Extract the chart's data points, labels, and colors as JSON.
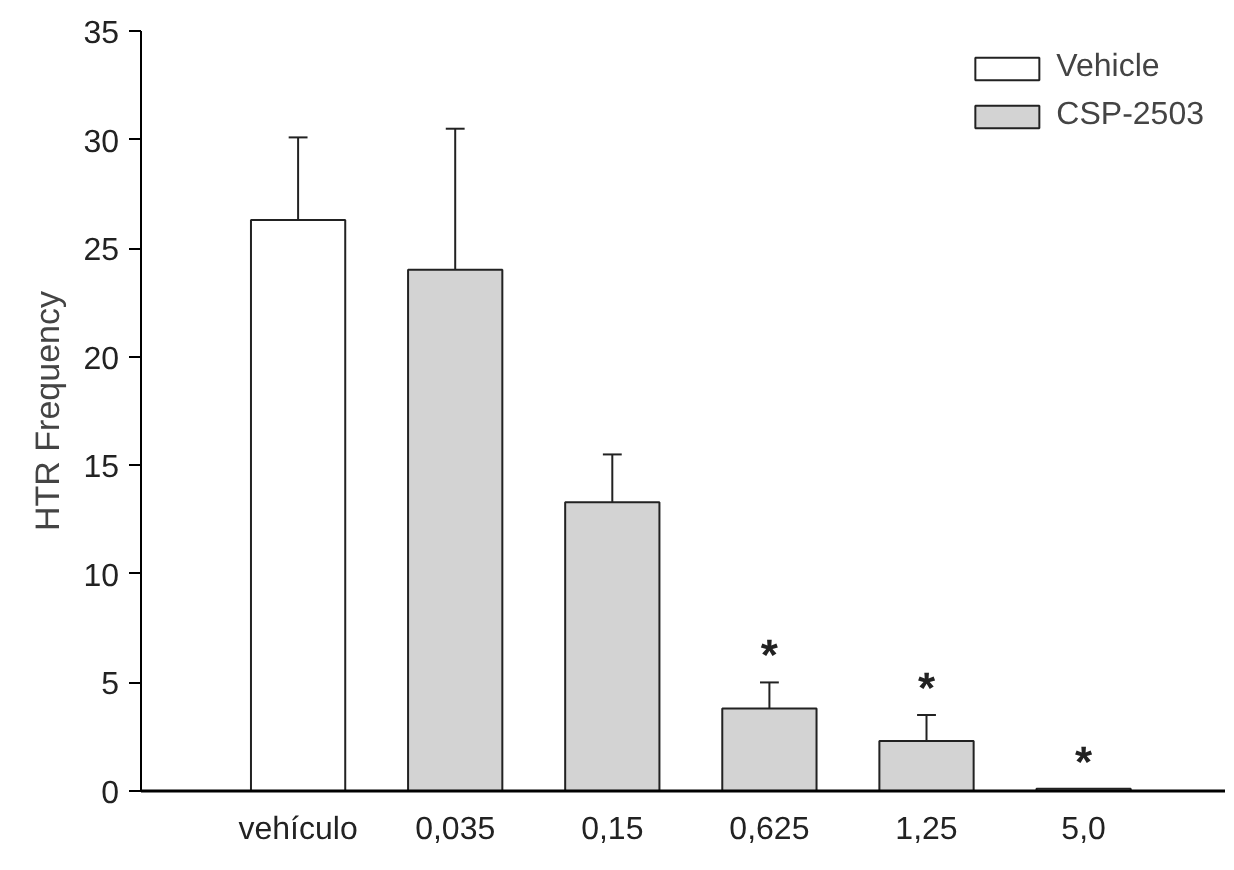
{
  "chart_data": {
    "type": "bar",
    "ylabel": "HTR Frequency",
    "categories": [
      "vehículo",
      "0,035",
      "0,15",
      "0,625",
      "1,25",
      "5,0"
    ],
    "series": [
      {
        "name": "Vehicle",
        "color": "#ffffff",
        "values": [
          26.3,
          null,
          null,
          null,
          null,
          null
        ],
        "errors": [
          [
            26.3,
            30.1
          ],
          null,
          null,
          null,
          null,
          null
        ]
      },
      {
        "name": "CSP-2503",
        "color": "#d3d3d3",
        "values": [
          null,
          24.0,
          13.3,
          3.8,
          2.3,
          0.1
        ],
        "errors": [
          null,
          [
            24.0,
            30.5
          ],
          [
            13.3,
            15.5
          ],
          [
            3.8,
            5.0
          ],
          [
            2.3,
            3.5
          ],
          null
        ]
      }
    ],
    "ylim": [
      0,
      35
    ],
    "yticks": [
      0,
      5,
      10,
      15,
      20,
      25,
      30,
      35
    ],
    "annotations": [
      {
        "text": "*",
        "x": "0,625",
        "y": 5.0
      },
      {
        "text": "*",
        "x": "1,25",
        "y": 3.5
      },
      {
        "text": "*",
        "x": "5,0",
        "y": 0.1
      }
    ],
    "legend": "top right",
    "grid": false
  }
}
